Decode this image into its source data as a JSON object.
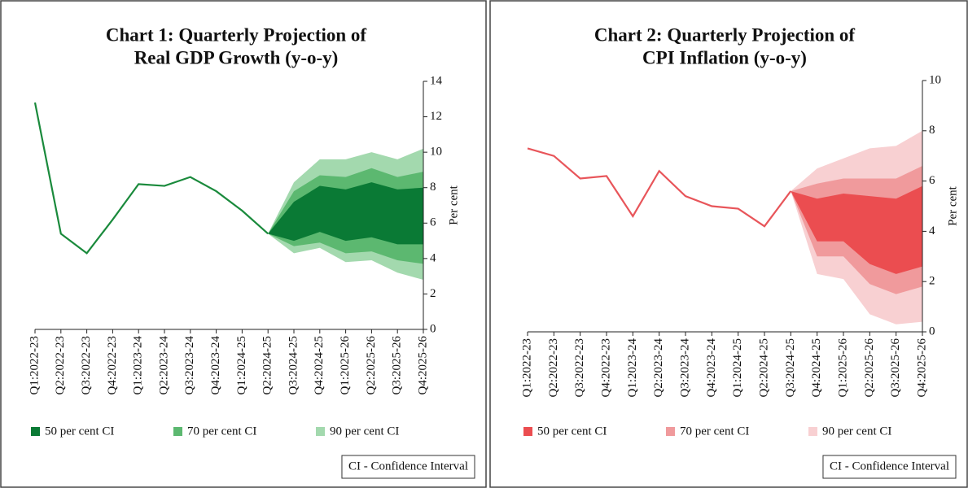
{
  "chart_data": [
    {
      "type": "fan",
      "title": [
        "Chart 1: Quarterly Projection of",
        "Real GDP Growth (y-o-y)"
      ],
      "ylabel": "Per cent",
      "note": "CI - Confidence Interval",
      "categories": [
        "Q1:2022-23",
        "Q2:2022-23",
        "Q3:2022-23",
        "Q4:2022-23",
        "Q1:2023-24",
        "Q2:2023-24",
        "Q3:2023-24",
        "Q4:2023-24",
        "Q1:2024-25",
        "Q2:2024-25",
        "Q3:2024-25",
        "Q4:2024-25",
        "Q1:2025-26",
        "Q2:2025-26",
        "Q3:2025-26",
        "Q4:2025-26"
      ],
      "values": [
        12.8,
        5.4,
        4.3,
        6.2,
        8.2,
        8.1,
        8.6,
        7.8,
        6.7,
        5.4,
        null,
        null,
        null,
        null,
        null,
        null
      ],
      "color": "#1a8a3c",
      "series": [
        {
          "name": "50 per cent CI",
          "color": "#0a7a35",
          "lower": [
            null,
            null,
            null,
            null,
            null,
            null,
            null,
            null,
            null,
            5.4,
            5.0,
            5.5,
            5.0,
            5.2,
            4.8,
            4.8
          ],
          "upper": [
            null,
            null,
            null,
            null,
            null,
            null,
            null,
            null,
            null,
            5.4,
            7.2,
            8.1,
            7.9,
            8.3,
            7.9,
            8.0
          ]
        },
        {
          "name": "70 per cent CI",
          "color": "#5cb870",
          "lower": [
            null,
            null,
            null,
            null,
            null,
            null,
            null,
            null,
            null,
            5.4,
            4.7,
            4.9,
            4.3,
            4.4,
            3.9,
            3.7
          ],
          "upper": [
            null,
            null,
            null,
            null,
            null,
            null,
            null,
            null,
            null,
            5.4,
            7.8,
            8.7,
            8.6,
            9.1,
            8.6,
            8.9
          ]
        },
        {
          "name": "90 per cent CI",
          "color": "#a3d9ae",
          "lower": [
            null,
            null,
            null,
            null,
            null,
            null,
            null,
            null,
            null,
            5.4,
            4.3,
            4.6,
            3.8,
            3.9,
            3.2,
            2.8
          ],
          "upper": [
            null,
            null,
            null,
            null,
            null,
            null,
            null,
            null,
            null,
            5.4,
            8.3,
            9.6,
            9.6,
            10.0,
            9.6,
            10.2
          ]
        }
      ],
      "ylim": [
        0,
        14
      ],
      "yticks": [
        0,
        2,
        4,
        6,
        8,
        10,
        12,
        14
      ]
    },
    {
      "type": "fan",
      "title": [
        "Chart 2: Quarterly Projection of",
        "CPI Inflation (y-o-y)"
      ],
      "ylabel": "Per cent",
      "note": "CI - Confidence Interval",
      "categories": [
        "Q1:2022-23",
        "Q2:2022-23",
        "Q3:2022-23",
        "Q4:2022-23",
        "Q1:2023-24",
        "Q2:2023-24",
        "Q3:2023-24",
        "Q4:2023-24",
        "Q1:2024-25",
        "Q2:2024-25",
        "Q3:2024-25",
        "Q4:2024-25",
        "Q1:2025-26",
        "Q2:2025-26",
        "Q3:2025-26",
        "Q4:2025-26"
      ],
      "values": [
        7.3,
        7.0,
        6.1,
        6.2,
        4.6,
        6.4,
        5.4,
        5.0,
        4.9,
        4.2,
        5.6,
        null,
        null,
        null,
        null,
        null
      ],
      "color": "#e8555a",
      "series": [
        {
          "name": "50 per cent CI",
          "color": "#eb4d50",
          "lower": [
            null,
            null,
            null,
            null,
            null,
            null,
            null,
            null,
            null,
            null,
            5.6,
            3.6,
            3.6,
            2.7,
            2.3,
            2.6
          ],
          "upper": [
            null,
            null,
            null,
            null,
            null,
            null,
            null,
            null,
            null,
            null,
            5.6,
            5.3,
            5.5,
            5.4,
            5.3,
            5.8
          ]
        },
        {
          "name": "70 per cent CI",
          "color": "#f09a9c",
          "lower": [
            null,
            null,
            null,
            null,
            null,
            null,
            null,
            null,
            null,
            null,
            5.6,
            3.0,
            3.0,
            1.9,
            1.5,
            1.8
          ],
          "upper": [
            null,
            null,
            null,
            null,
            null,
            null,
            null,
            null,
            null,
            null,
            5.6,
            5.9,
            6.1,
            6.1,
            6.1,
            6.6
          ]
        },
        {
          "name": "90 per cent CI",
          "color": "#f8d0d2",
          "lower": [
            null,
            null,
            null,
            null,
            null,
            null,
            null,
            null,
            null,
            null,
            5.6,
            2.3,
            2.1,
            0.7,
            0.3,
            0.4
          ],
          "upper": [
            null,
            null,
            null,
            null,
            null,
            null,
            null,
            null,
            null,
            null,
            5.6,
            6.5,
            6.9,
            7.3,
            7.4,
            8.0
          ]
        }
      ],
      "ylim": [
        0,
        10
      ],
      "yticks": [
        0,
        2,
        4,
        6,
        8,
        10
      ]
    }
  ]
}
